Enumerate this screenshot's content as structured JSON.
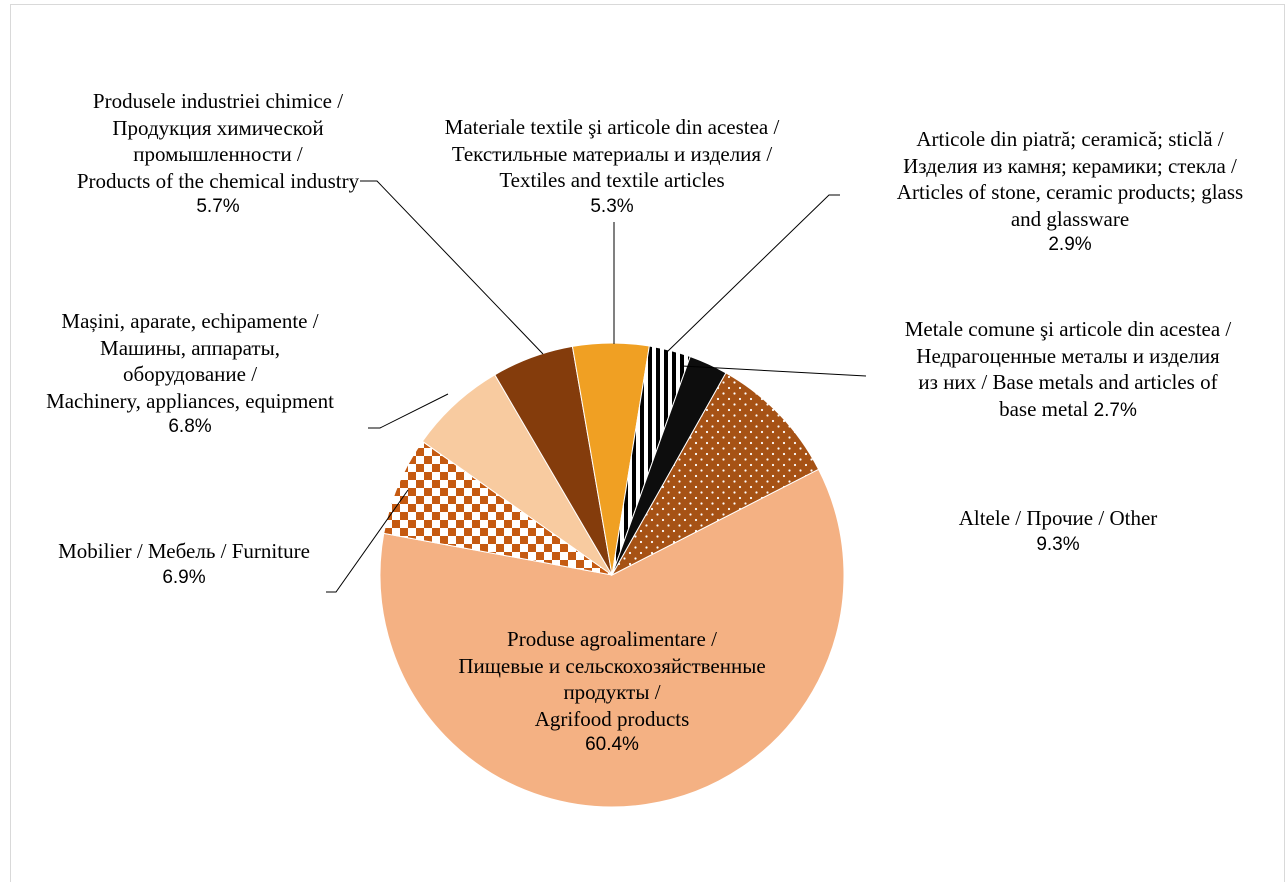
{
  "chart_data": {
    "type": "pie",
    "categories": [
      "Produse agroalimentare /\nПищевые и сельскохозяйственные\nпродукты /\nAgrifood products",
      "Mobilier / Мебель / Furniture",
      "Mașini, aparate, echipamente /\nМашины, аппараты,\nоборудование /\nMachinery, appliances, equipment",
      "Produsele industriei chimice /\nПродукция химической\nпромышленности /\nProducts of the chemical industry",
      "Materiale textile şi articole din acestea /\nТекстильные материалы и изделия /\nTextiles and textile articles",
      "Articole din piatră; ceramică; sticlă /\nИзделия из камня; керамики; стекла /\nArticles of stone, ceramic products; glass\nand glassware",
      "Metale comune şi articole din acestea /\nНедрагоценные металы и изделия\nиз них / Base metals and articles of\nbase metal",
      "Altele / Прочие / Other"
    ],
    "values": [
      60.4,
      6.9,
      6.8,
      5.7,
      5.3,
      2.9,
      2.7,
      9.3
    ],
    "value_labels": [
      "60.4%",
      "6.9%",
      "6.8%",
      "5.7%",
      "5.3%",
      "2.9%",
      "2.7%",
      "9.3%"
    ],
    "colors": [
      "#f4b183",
      "#c55a11",
      "#f8cba0",
      "#843c0c",
      "#f0a023",
      "#000000",
      "#0d0d0d",
      "#a65215"
    ],
    "fill_patterns": [
      "solid",
      "checkered",
      "solid",
      "solid",
      "solid",
      "striped",
      "solid",
      "dotted"
    ]
  }
}
